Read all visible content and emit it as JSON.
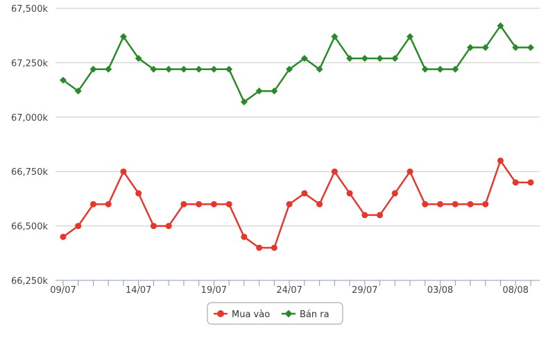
{
  "chart_data": {
    "type": "line",
    "x": [
      "09/07",
      "10/07",
      "11/07",
      "12/07",
      "13/07",
      "14/07",
      "15/07",
      "16/07",
      "17/07",
      "18/07",
      "19/07",
      "20/07",
      "21/07",
      "22/07",
      "23/07",
      "24/07",
      "25/07",
      "26/07",
      "27/07",
      "28/07",
      "29/07",
      "30/07",
      "31/07",
      "01/08",
      "02/08",
      "03/08",
      "04/08",
      "05/08",
      "06/08",
      "07/08",
      "08/08",
      "09/08"
    ],
    "x_tick_labels": [
      "09/07",
      "14/07",
      "19/07",
      "24/07",
      "29/07",
      "03/08",
      "08/08"
    ],
    "y_tick_labels": [
      "66,250k",
      "66,500k",
      "66,750k",
      "67,000k",
      "67,250k",
      "67,500k"
    ],
    "y_ticks": [
      66250,
      66500,
      66750,
      67000,
      67250,
      67500
    ],
    "ylim": [
      66250,
      67500
    ],
    "grid": true,
    "legend_position": "bottom-center",
    "series": [
      {
        "name": "Mua vào",
        "color": "#e3382d",
        "marker": "circle",
        "values": [
          66450,
          66500,
          66600,
          66600,
          66750,
          66650,
          66500,
          66500,
          66600,
          66600,
          66600,
          66600,
          66450,
          66400,
          66400,
          66600,
          66650,
          66600,
          66750,
          66650,
          66550,
          66550,
          66650,
          66750,
          66600,
          66600,
          66600,
          66600,
          66600,
          66800,
          66700,
          66700
        ]
      },
      {
        "name": "Bán ra",
        "color": "#2a8a2a",
        "marker": "diamond",
        "values": [
          67170,
          67120,
          67220,
          67220,
          67370,
          67270,
          67220,
          67220,
          67220,
          67220,
          67220,
          67220,
          67070,
          67120,
          67120,
          67220,
          67270,
          67220,
          67370,
          67270,
          67270,
          67270,
          67270,
          67370,
          67220,
          67220,
          67220,
          67320,
          67320,
          67420,
          67320,
          67320
        ]
      }
    ]
  }
}
